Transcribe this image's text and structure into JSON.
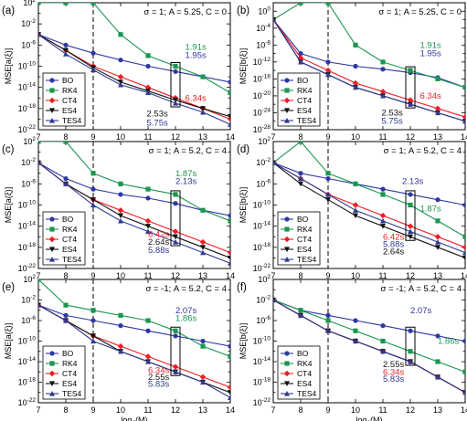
{
  "colors": {
    "BO": "#2e37a3",
    "RK4": "#1a9650",
    "CT4": "#ee1c24",
    "ES4": "#111111",
    "TES4": "#2f3a8f"
  },
  "markers": {
    "BO": "circle",
    "RK4": "square",
    "CT4": "diamond",
    "ES4": "triangle-down",
    "TES4": "triangle-up"
  },
  "chart_data": [
    {
      "type": "line",
      "panel_label": "(a)",
      "title": "σ = 1;  A = 5.25, C = 0",
      "ylabel": "MSE[a(ξ)]",
      "xlabel": "log2(M)",
      "x": [
        7,
        8,
        9,
        10,
        11,
        12,
        13,
        14
      ],
      "xlim": [
        7,
        14
      ],
      "ylim_log10": [
        -22,
        2
      ],
      "scale_y": "log",
      "vline_x": 9,
      "highlight_x": 12,
      "legend_position": "bottom-left",
      "series": [
        {
          "name": "BO",
          "values": [
            0.0001,
            1e-06,
            3e-08,
            1.5e-09,
            1e-10,
            1e-11,
            1e-12,
            1e-13
          ]
        },
        {
          "name": "RK4",
          "values": [
            100,
            100,
            100,
            0.0001,
            1e-08,
            1e-10,
            1e-12,
            1e-15
          ]
        },
        {
          "name": "CT4",
          "values": [
            0.0001,
            1e-07,
            1e-10,
            1e-12,
            1e-14,
            1e-16,
            1e-18,
            1e-20
          ]
        },
        {
          "name": "ES4",
          "values": [
            0.0001,
            1e-07,
            5e-11,
            1e-13,
            2e-15,
            4e-17,
            1e-18,
            3e-20
          ]
        },
        {
          "name": "TES4",
          "values": [
            0.0001,
            2e-08,
            2e-11,
            3e-14,
            1e-15,
            1e-17,
            2e-19,
            1e-21
          ]
        }
      ],
      "annotations": [
        {
          "text": "1.91s",
          "series": "RK4",
          "x": 12.35,
          "y": 4e-07
        },
        {
          "text": "1.95s",
          "series": "BO",
          "x": 12.35,
          "y": 1.2e-08
        },
        {
          "text": "6.34s",
          "series": "CT4",
          "x": 12.35,
          "y": 1e-16
        },
        {
          "text": "2.53s",
          "series": "ES4",
          "x": 10.95,
          "y": 1e-19
        },
        {
          "text": "5.75s",
          "series": "TES4",
          "x": 10.95,
          "y": 2e-21
        }
      ]
    },
    {
      "type": "line",
      "panel_label": "(b)",
      "title": "σ = 1;  A = 5.25, C = 0",
      "ylabel": "MSE[b(ξ)]",
      "xlabel": "log2(M)",
      "x": [
        7,
        8,
        9,
        10,
        11,
        12,
        13,
        14
      ],
      "xlim": [
        7,
        14
      ],
      "ylim_log10": [
        -28,
        2
      ],
      "scale_y": "log",
      "vline_x": 9,
      "highlight_x": 12,
      "legend_position": "bottom-left",
      "series": [
        {
          "name": "BO",
          "values": [
            0.01,
            1e-10,
            1e-12,
            1e-13,
            2e-14,
            3e-15,
            2e-16,
            1e-18
          ]
        },
        {
          "name": "RK4",
          "values": [
            0.01,
            100,
            100,
            1e-08,
            1e-12,
            1e-14,
            1e-16,
            1e-18
          ]
        },
        {
          "name": "CT4",
          "values": [
            0.01,
            1e-11,
            1e-14,
            1e-17,
            1e-19,
            1e-21,
            1e-23,
            1e-25
          ]
        },
        {
          "name": "ES4",
          "values": [
            0.01,
            1e-12,
            1e-15,
            1e-18,
            1e-20,
            1e-22,
            1e-24,
            1e-26
          ]
        },
        {
          "name": "TES4",
          "values": [
            0.01,
            1e-12,
            1e-15,
            1e-18,
            1e-20,
            1e-22,
            1e-24,
            1e-26
          ]
        }
      ],
      "annotations": [
        {
          "text": "1.91s",
          "series": "RK4",
          "x": 12.35,
          "y": 1e-08
        },
        {
          "text": "1.95s",
          "series": "BO",
          "x": 12.35,
          "y": 1e-10
        },
        {
          "text": "6.34s",
          "series": "CT4",
          "x": 12.35,
          "y": 1e-20
        },
        {
          "text": "2.53s",
          "series": "ES4",
          "x": 10.95,
          "y": 1e-24
        },
        {
          "text": "5.75s",
          "series": "TES4",
          "x": 10.95,
          "y": 1e-26
        }
      ]
    },
    {
      "type": "line",
      "panel_label": "(c)",
      "title": "σ = 1;  A = 5.2, C = 4",
      "ylabel": "MSE[a(ξ)]",
      "xlabel": "log2(M)",
      "x": [
        7,
        8,
        9,
        10,
        11,
        12,
        13,
        14
      ],
      "xlim": [
        7,
        14
      ],
      "ylim_log10": [
        -22,
        2
      ],
      "scale_y": "log",
      "vline_x": 9,
      "highlight_x": 12,
      "legend_position": "bottom-left",
      "series": [
        {
          "name": "BO",
          "values": [
            0.01,
            1e-05,
            1e-07,
            1e-08,
            2e-09,
            2e-10,
            1e-11,
            1e-12
          ]
        },
        {
          "name": "RK4",
          "values": [
            100,
            100,
            0.0001,
            1e-06,
            1e-07,
            1e-08,
            1e-11,
            1e-13
          ]
        },
        {
          "name": "CT4",
          "values": [
            0.01,
            1e-06,
            1e-09,
            1e-11,
            1e-13,
            1e-15,
            1e-17,
            1e-19
          ]
        },
        {
          "name": "ES4",
          "values": [
            0.01,
            1e-06,
            1e-09,
            1e-12,
            1e-14,
            1e-16,
            1e-18,
            1e-20
          ]
        },
        {
          "name": "TES4",
          "values": [
            0.01,
            1e-06,
            1e-10,
            1e-13,
            1e-15,
            1e-17,
            1e-19,
            1e-21
          ]
        }
      ],
      "annotations": [
        {
          "text": "1.87s",
          "series": "RK4",
          "x": 12.0,
          "y": 0.0001
        },
        {
          "text": "2.13s",
          "series": "BO",
          "x": 12.0,
          "y": 3e-06
        },
        {
          "text": "6.42s",
          "series": "CT4",
          "x": 11.0,
          "y": 3e-16
        },
        {
          "text": "2.64s",
          "series": "ES4",
          "x": 11.0,
          "y": 1e-17
        },
        {
          "text": "5.88s",
          "series": "TES4",
          "x": 11.0,
          "y": 3e-19
        }
      ]
    },
    {
      "type": "line",
      "panel_label": "(d)",
      "title": "σ = 1;  A = 5.2, C = 4",
      "ylabel": "MSE[b(ξ)]",
      "xlabel": "log2(M)",
      "x": [
        7,
        8,
        9,
        10,
        11,
        12,
        13,
        14
      ],
      "xlim": [
        7,
        14
      ],
      "ylim_log10": [
        -22,
        2
      ],
      "scale_y": "log",
      "vline_x": 9,
      "highlight_x": 12,
      "legend_position": "bottom-left",
      "series": [
        {
          "name": "BO",
          "values": [
            0.01,
            0.0001,
            1e-05,
            1e-06,
            1e-07,
            1e-08,
            1e-09,
            1e-10
          ]
        },
        {
          "name": "RK4",
          "values": [
            0.01,
            100,
            0.0001,
            1e-06,
            1e-08,
            1e-10,
            1e-13,
            1e-16
          ]
        },
        {
          "name": "CT4",
          "values": [
            0.01,
            1e-05,
            1e-08,
            1e-10,
            1e-12,
            1e-14,
            1e-16,
            1e-18
          ]
        },
        {
          "name": "ES4",
          "values": [
            0.01,
            1e-06,
            1e-09,
            1e-12,
            1e-14,
            1e-16,
            1e-18,
            1e-20
          ]
        },
        {
          "name": "TES4",
          "values": [
            0.01,
            1e-05,
            1e-08,
            1e-11,
            1e-13,
            1e-15,
            1e-17,
            1e-19
          ]
        }
      ],
      "annotations": [
        {
          "text": "2.13s",
          "series": "BO",
          "x": 11.7,
          "y": 3e-06
        },
        {
          "text": "1.87s",
          "series": "RK4",
          "x": 12.35,
          "y": 2e-11
        },
        {
          "text": "6.42s",
          "series": "CT4",
          "x": 11.0,
          "y": 1e-16
        },
        {
          "text": "5.88s",
          "series": "TES4",
          "x": 11.0,
          "y": 4e-18
        },
        {
          "text": "2.64s",
          "series": "ES4",
          "x": 11.0,
          "y": 1.5e-19
        }
      ]
    },
    {
      "type": "line",
      "panel_label": "(e)",
      "title": "σ = -1;  A = 5.2, C = 4",
      "ylabel": "MSE[a(ξ)]",
      "xlabel": "log2(M)",
      "x": [
        7,
        8,
        9,
        10,
        11,
        12,
        13,
        14
      ],
      "xlim": [
        7,
        14
      ],
      "ylim_log10": [
        -22,
        2
      ],
      "scale_y": "log",
      "vline_x": 9,
      "highlight_x": 12,
      "legend_position": "bottom-left",
      "series": [
        {
          "name": "BO",
          "values": [
            0.001,
            1e-05,
            1e-06,
            1e-07,
            1e-08,
            1e-09,
            1e-10,
            1e-11
          ]
        },
        {
          "name": "RK4",
          "values": [
            100,
            0.001,
            0.0001,
            1e-05,
            1e-06,
            1e-08,
            1e-11,
            1e-13
          ]
        },
        {
          "name": "CT4",
          "values": [
            0.001,
            1e-06,
            1e-09,
            1e-11,
            1e-13,
            1e-15,
            1e-17,
            1e-19
          ]
        },
        {
          "name": "ES4",
          "values": [
            0.001,
            1e-06,
            1e-09,
            1e-12,
            1e-14,
            1e-16,
            1e-18,
            1e-20
          ]
        },
        {
          "name": "TES4",
          "values": [
            0.001,
            1e-06,
            1e-10,
            1e-12,
            1e-14,
            1e-16,
            1e-18,
            1e-21
          ]
        }
      ],
      "annotations": [
        {
          "text": "2.07s",
          "series": "BO",
          "x": 12.0,
          "y": 0.0001
        },
        {
          "text": "1.86s",
          "series": "RK4",
          "x": 12.0,
          "y": 3e-06
        },
        {
          "text": "6.34s",
          "series": "CT4",
          "x": 11.0,
          "y": 2e-16
        },
        {
          "text": "2.55s",
          "series": "ES4",
          "x": 11.0,
          "y": 1e-17
        },
        {
          "text": "5.83s",
          "series": "TES4",
          "x": 11.0,
          "y": 4e-19
        }
      ]
    },
    {
      "type": "line",
      "panel_label": "(f)",
      "title": "σ = -1;  A = 5.2, C = 4",
      "ylabel": "MSE[b(ξ)]",
      "xlabel": "log2(M)",
      "x": [
        7,
        8,
        9,
        10,
        11,
        12,
        13,
        14
      ],
      "xlim": [
        7,
        14
      ],
      "ylim_log10": [
        -22,
        2
      ],
      "scale_y": "log",
      "vline_x": 9,
      "highlight_x": 12,
      "legend_position": "bottom-left",
      "series": [
        {
          "name": "BO",
          "values": [
            0.01,
            0.0001,
            1e-05,
            1e-06,
            1e-07,
            1e-08,
            1e-09,
            1e-10
          ]
        },
        {
          "name": "RK4",
          "values": [
            0.01,
            0.0001,
            1e-06,
            1e-08,
            1e-10,
            1e-12,
            1e-14,
            1e-16
          ]
        },
        {
          "name": "CT4",
          "values": [
            0.01,
            1e-05,
            1e-08,
            1e-10,
            1e-12,
            1e-14,
            1e-17,
            1e-20
          ]
        },
        {
          "name": "ES4",
          "values": [
            0.01,
            1e-05,
            1e-08,
            1e-10,
            1e-12,
            1e-14,
            1e-17,
            1e-20
          ]
        },
        {
          "name": "TES4",
          "values": [
            0.01,
            1e-05,
            1e-08,
            1e-10,
            1e-12,
            1e-14,
            1e-17,
            1e-20
          ]
        }
      ],
      "annotations": [
        {
          "text": "2.07s",
          "series": "BO",
          "x": 12.0,
          "y": 0.0001
        },
        {
          "text": "1.86s",
          "series": "RK4",
          "x": 13.0,
          "y": 1e-10
        },
        {
          "text": "2.55s",
          "series": "ES4",
          "x": 11.0,
          "y": 3e-15
        },
        {
          "text": "6.34s",
          "series": "CT4",
          "x": 11.0,
          "y": 1e-16
        },
        {
          "text": "5.83s",
          "series": "TES4",
          "x": 11.0,
          "y": 4e-18
        }
      ]
    }
  ]
}
